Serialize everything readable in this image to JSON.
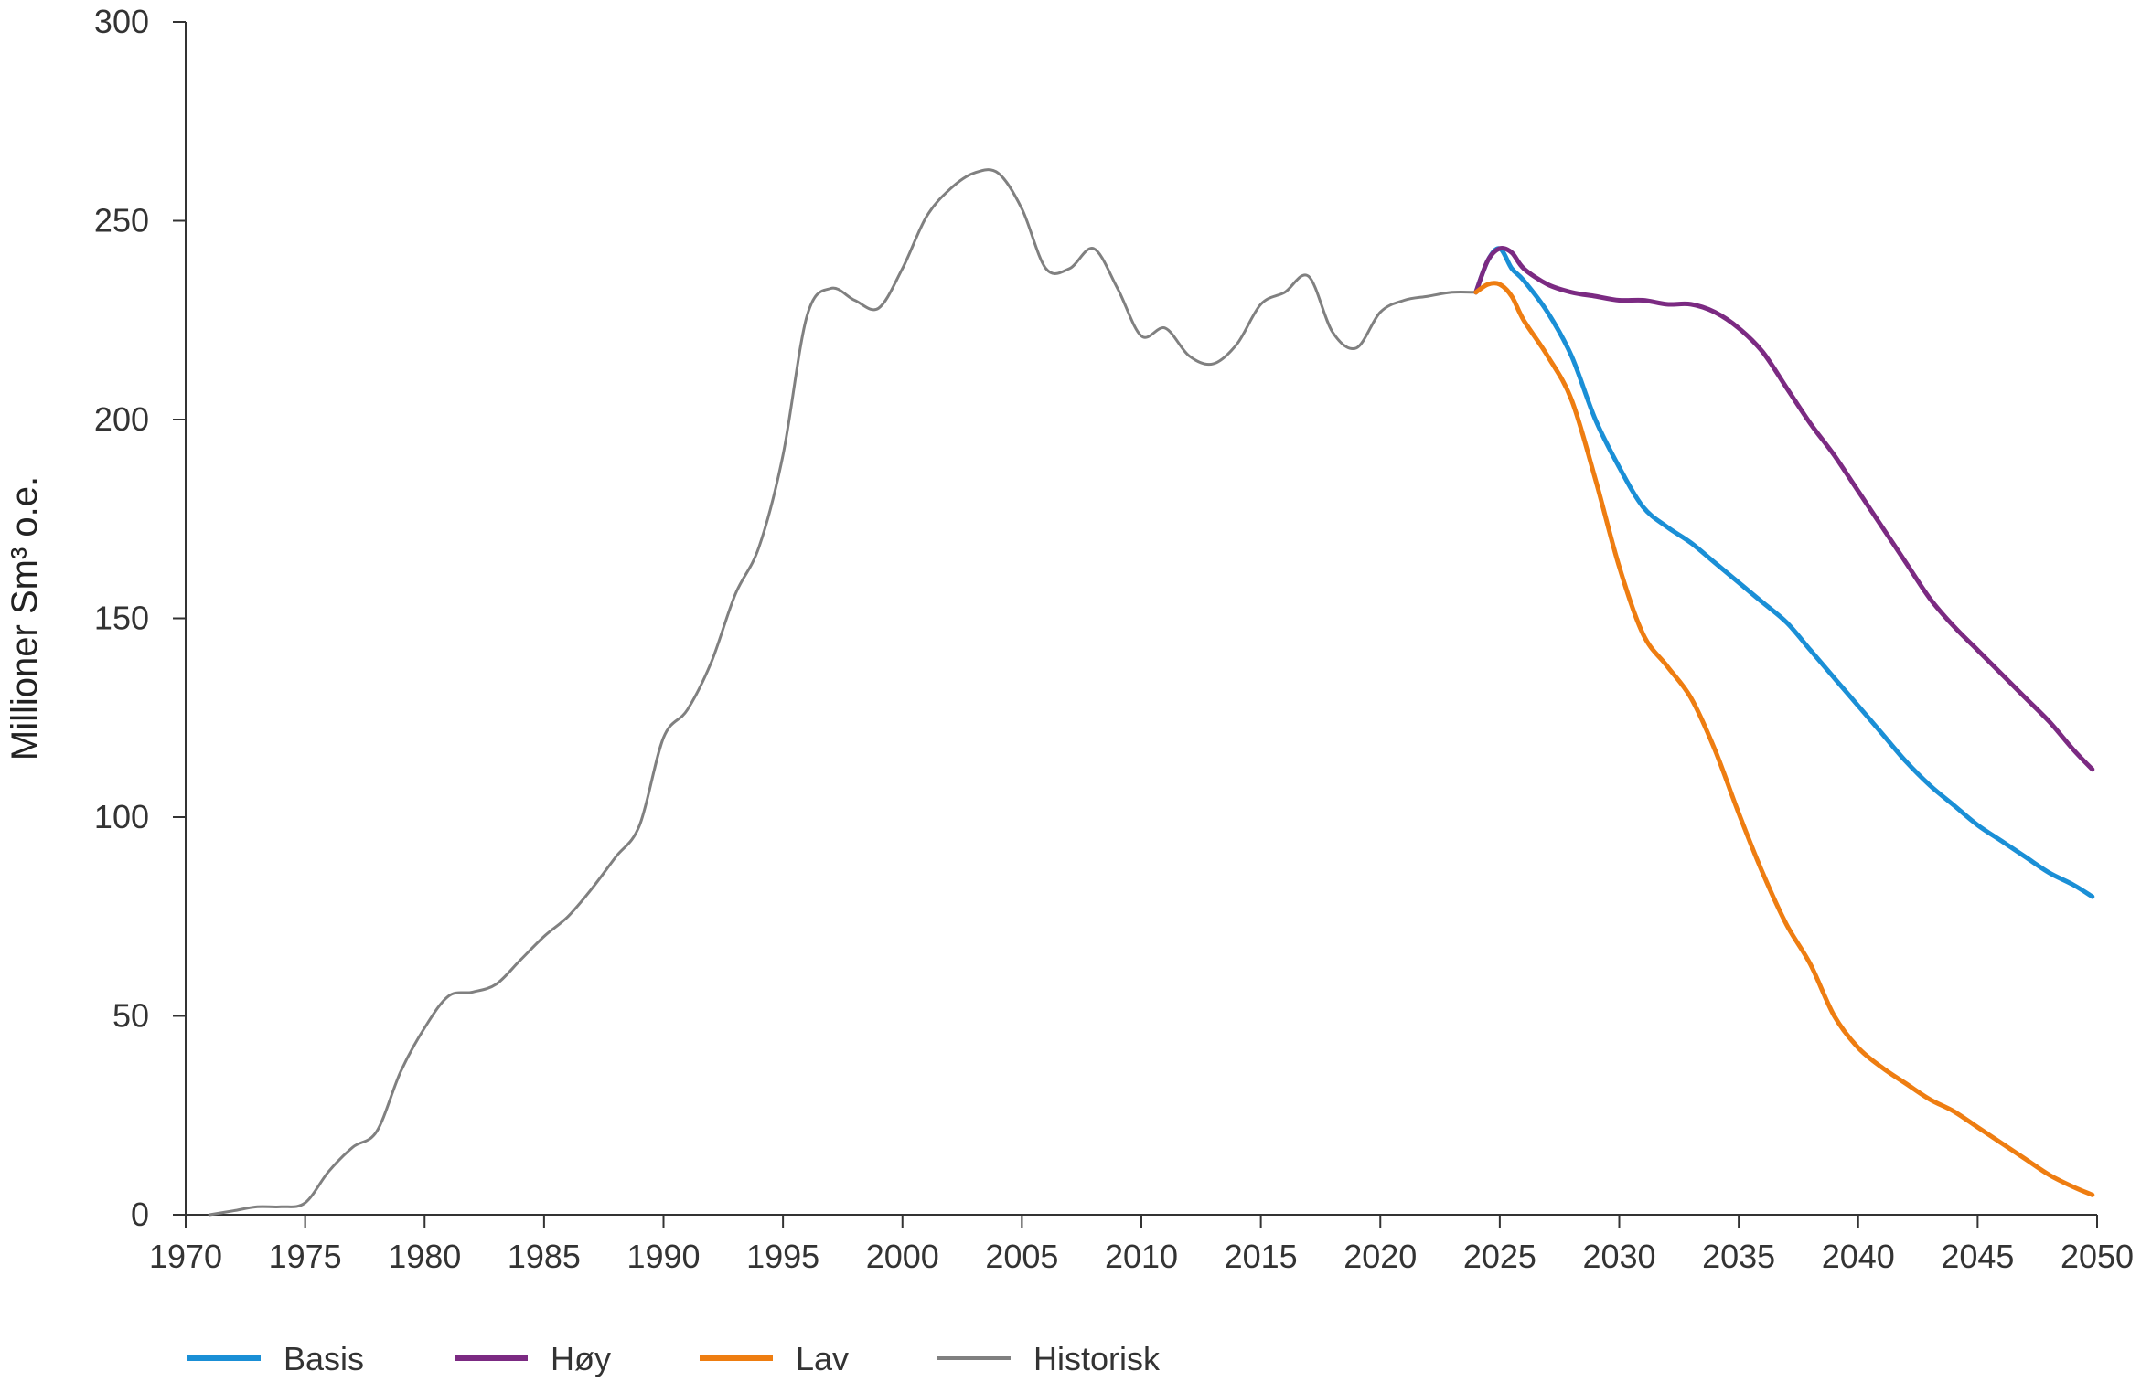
{
  "chart_data": {
    "type": "line",
    "title": "",
    "xlabel": "",
    "ylabel": "Millioner Sm³ o.e.",
    "xlim": [
      1970,
      2050
    ],
    "ylim": [
      0,
      300
    ],
    "x_ticks": [
      1970,
      1975,
      1980,
      1985,
      1990,
      1995,
      2000,
      2005,
      2010,
      2015,
      2020,
      2025,
      2030,
      2035,
      2040,
      2045,
      2050
    ],
    "y_ticks": [
      0,
      50,
      100,
      150,
      200,
      250,
      300
    ],
    "grid": false,
    "legend_position": "bottom",
    "series": [
      {
        "name": "Basis",
        "color": "#1a8fd6",
        "x": [
          2024,
          2024.5,
          2025,
          2025.5,
          2026,
          2027,
          2028,
          2029,
          2030,
          2031,
          2032,
          2033,
          2034,
          2035,
          2036,
          2037,
          2038,
          2039,
          2040,
          2041,
          2042,
          2043,
          2044,
          2045,
          2046,
          2047,
          2048,
          2049,
          2049.8
        ],
        "values": [
          232,
          240,
          243,
          238,
          235,
          227,
          216,
          200,
          188,
          178,
          173,
          169,
          164,
          159,
          154,
          149,
          142,
          135,
          128,
          121,
          114,
          108,
          103,
          98,
          94,
          90,
          86,
          83,
          80
        ]
      },
      {
        "name": "Høy",
        "color": "#7b2a82",
        "x": [
          2024,
          2024.5,
          2025,
          2025.5,
          2026,
          2027,
          2028,
          2029,
          2030,
          2031,
          2032,
          2033,
          2034,
          2035,
          2036,
          2037,
          2038,
          2039,
          2040,
          2041,
          2042,
          2043,
          2044,
          2045,
          2046,
          2047,
          2048,
          2049,
          2049.8
        ],
        "values": [
          232,
          240,
          243,
          242,
          238,
          234,
          232,
          231,
          230,
          230,
          229,
          229,
          227,
          223,
          217,
          208,
          199,
          191,
          182,
          173,
          164,
          155,
          148,
          142,
          136,
          130,
          124,
          117,
          112
        ]
      },
      {
        "name": "Lav",
        "color": "#ee7d11",
        "x": [
          2024,
          2024.5,
          2025,
          2025.5,
          2026,
          2027,
          2028,
          2029,
          2030,
          2031,
          2032,
          2033,
          2034,
          2035,
          2036,
          2037,
          2038,
          2039,
          2040,
          2041,
          2042,
          2043,
          2044,
          2045,
          2046,
          2047,
          2048,
          2049,
          2049.8
        ],
        "values": [
          232,
          234,
          234,
          231,
          225,
          216,
          205,
          185,
          163,
          146,
          138,
          130,
          117,
          101,
          86,
          73,
          63,
          50,
          42,
          37,
          33,
          29,
          26,
          22,
          18,
          14,
          10,
          7,
          5
        ]
      },
      {
        "name": "Historisk",
        "color": "#808080",
        "x": [
          1971,
          1972,
          1973,
          1974,
          1975,
          1976,
          1977,
          1978,
          1979,
          1980,
          1981,
          1982,
          1983,
          1984,
          1985,
          1986,
          1987,
          1988,
          1989,
          1990,
          1991,
          1992,
          1993,
          1994,
          1995,
          1996,
          1997,
          1998,
          1999,
          2000,
          2001,
          2002,
          2003,
          2004,
          2005,
          2006,
          2007,
          2008,
          2009,
          2010,
          2011,
          2012,
          2013,
          2014,
          2015,
          2016,
          2017,
          2018,
          2019,
          2020,
          2021,
          2022,
          2023,
          2024
        ],
        "values": [
          0,
          1,
          2,
          2,
          3,
          11,
          17,
          21,
          36,
          47,
          55,
          56,
          58,
          64,
          70,
          75,
          82,
          90,
          98,
          120,
          127,
          139,
          156,
          168,
          191,
          226,
          233,
          230,
          228,
          238,
          251,
          258,
          262,
          262,
          253,
          238,
          238,
          243,
          233,
          221,
          223,
          216,
          214,
          219,
          229,
          232,
          236,
          222,
          218,
          227,
          230,
          231,
          232,
          232
        ]
      }
    ]
  }
}
